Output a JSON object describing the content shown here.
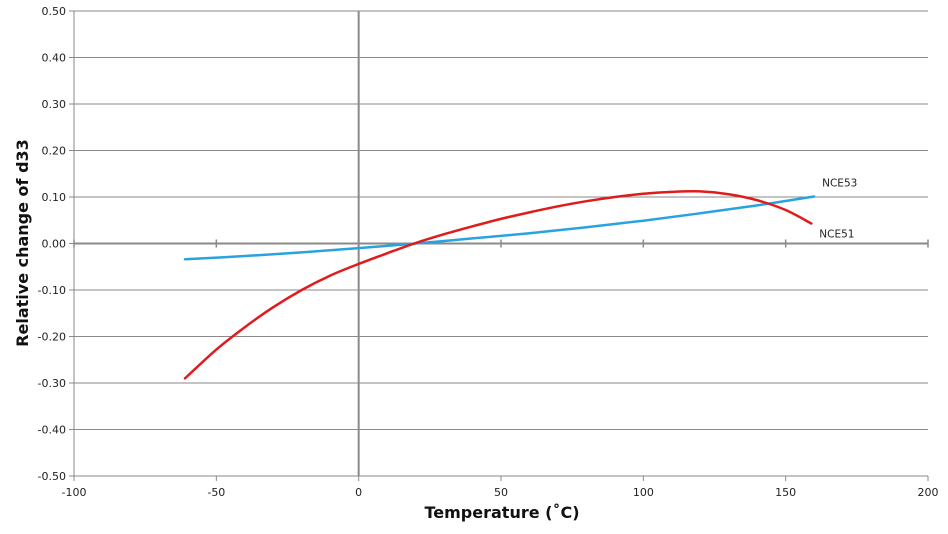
{
  "chart_data": {
    "type": "line",
    "title": "",
    "xlabel": "Temperature (˚C)",
    "ylabel": "Relative change of d33",
    "xlim": [
      -100,
      200
    ],
    "ylim": [
      -0.5,
      0.5
    ],
    "x_ticks": [
      -100,
      -50,
      0,
      50,
      100,
      150,
      200
    ],
    "x_tick_labels": [
      "-100",
      "-50",
      "0",
      "50",
      "100",
      "150",
      "200"
    ],
    "y_ticks": [
      -0.5,
      -0.4,
      -0.3,
      -0.2,
      -0.1,
      0.0,
      0.1,
      0.2,
      0.3,
      0.4,
      0.5
    ],
    "y_tick_labels": [
      "-0.50",
      "-0.40",
      "-0.30",
      "-0.20",
      "-0.10",
      "0.00",
      "0.10",
      "0.20",
      "0.30",
      "0.40",
      "0.50"
    ],
    "grid": "horizontal",
    "legend": "none",
    "series": [
      {
        "name": "NCE53",
        "color": "#29a3e0",
        "x": [
          -61,
          -40,
          -20,
          0,
          20,
          40,
          60,
          80,
          100,
          120,
          140,
          160
        ],
        "y": [
          -0.034,
          -0.027,
          -0.019,
          -0.01,
          0.0,
          0.011,
          0.022,
          0.035,
          0.049,
          0.065,
          0.082,
          0.101
        ]
      },
      {
        "name": "NCE51",
        "color": "#e01b1b",
        "x": [
          -61,
          -50,
          -40,
          -30,
          -20,
          -10,
          0,
          10,
          20,
          30,
          40,
          50,
          60,
          70,
          80,
          90,
          100,
          110,
          120,
          130,
          140,
          150,
          159
        ],
        "y": [
          -0.29,
          -0.228,
          -0.18,
          -0.137,
          -0.1,
          -0.069,
          -0.044,
          -0.021,
          0.001,
          0.02,
          0.037,
          0.053,
          0.067,
          0.08,
          0.091,
          0.1,
          0.107,
          0.111,
          0.112,
          0.106,
          0.093,
          0.072,
          0.043
        ]
      }
    ]
  }
}
